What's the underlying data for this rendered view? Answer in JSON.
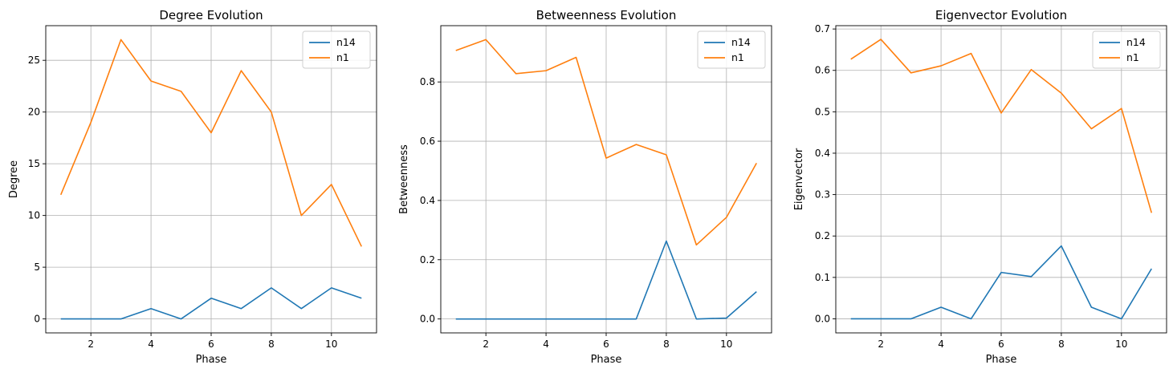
{
  "chart_data": [
    {
      "type": "line",
      "title": "Degree Evolution",
      "xlabel": "Phase",
      "ylabel": "Degree",
      "xlim": [
        0.5,
        11.5
      ],
      "ylim": [
        -1.35,
        28.35
      ],
      "xticks": [
        2,
        4,
        6,
        8,
        10
      ],
      "yticks": [
        0,
        5,
        10,
        15,
        20,
        25
      ],
      "grid": true,
      "legend": "top-right",
      "x": [
        1,
        2,
        3,
        4,
        5,
        6,
        7,
        8,
        9,
        10,
        11
      ],
      "series": [
        {
          "name": "n14",
          "color": "#1f77b4",
          "values": [
            0,
            0,
            0,
            1,
            0,
            2,
            1,
            3,
            1,
            3,
            2
          ]
        },
        {
          "name": "n1",
          "color": "#ff7f0e",
          "values": [
            12,
            19,
            27,
            23,
            22,
            18,
            24,
            20,
            10,
            13,
            7
          ]
        }
      ]
    },
    {
      "type": "line",
      "title": "Betweenness Evolution",
      "xlabel": "Phase",
      "ylabel": "Betweenness",
      "xlim": [
        0.5,
        11.5
      ],
      "ylim": [
        -0.047,
        0.99
      ],
      "xticks": [
        2,
        4,
        6,
        8,
        10
      ],
      "yticks": [
        0.0,
        0.2,
        0.4,
        0.6,
        0.8
      ],
      "ytick_labels": [
        "0.0",
        "0.2",
        "0.4",
        "0.6",
        "0.8"
      ],
      "grid": true,
      "legend": "top-right",
      "x": [
        1,
        2,
        3,
        4,
        5,
        6,
        7,
        8,
        9,
        10,
        11
      ],
      "series": [
        {
          "name": "n14",
          "color": "#1f77b4",
          "values": [
            0,
            0,
            0,
            0,
            0,
            0,
            0,
            0.263,
            0,
            0.003,
            0.092
          ]
        },
        {
          "name": "n1",
          "color": "#ff7f0e",
          "values": [
            0.906,
            0.943,
            0.828,
            0.838,
            0.883,
            0.543,
            0.589,
            0.554,
            0.25,
            0.343,
            0.526
          ]
        }
      ]
    },
    {
      "type": "line",
      "title": "Eigenvector Evolution",
      "xlabel": "Phase",
      "ylabel": "Eigenvector",
      "xlim": [
        0.5,
        11.5
      ],
      "ylim": [
        -0.034,
        0.708
      ],
      "xticks": [
        2,
        4,
        6,
        8,
        10
      ],
      "yticks": [
        0.0,
        0.1,
        0.2,
        0.3,
        0.4,
        0.5,
        0.6,
        0.7
      ],
      "ytick_labels": [
        "0.0",
        "0.1",
        "0.2",
        "0.3",
        "0.4",
        "0.5",
        "0.6",
        "0.7"
      ],
      "grid": true,
      "legend": "top-right",
      "x": [
        1,
        2,
        3,
        4,
        5,
        6,
        7,
        8,
        9,
        10,
        11
      ],
      "series": [
        {
          "name": "n14",
          "color": "#1f77b4",
          "values": [
            0,
            0,
            0,
            0.028,
            0,
            0.112,
            0.102,
            0.176,
            0.028,
            0,
            0.121
          ]
        },
        {
          "name": "n1",
          "color": "#ff7f0e",
          "values": [
            0.627,
            0.675,
            0.594,
            0.611,
            0.641,
            0.497,
            0.602,
            0.545,
            0.459,
            0.508,
            0.256
          ]
        }
      ]
    }
  ]
}
